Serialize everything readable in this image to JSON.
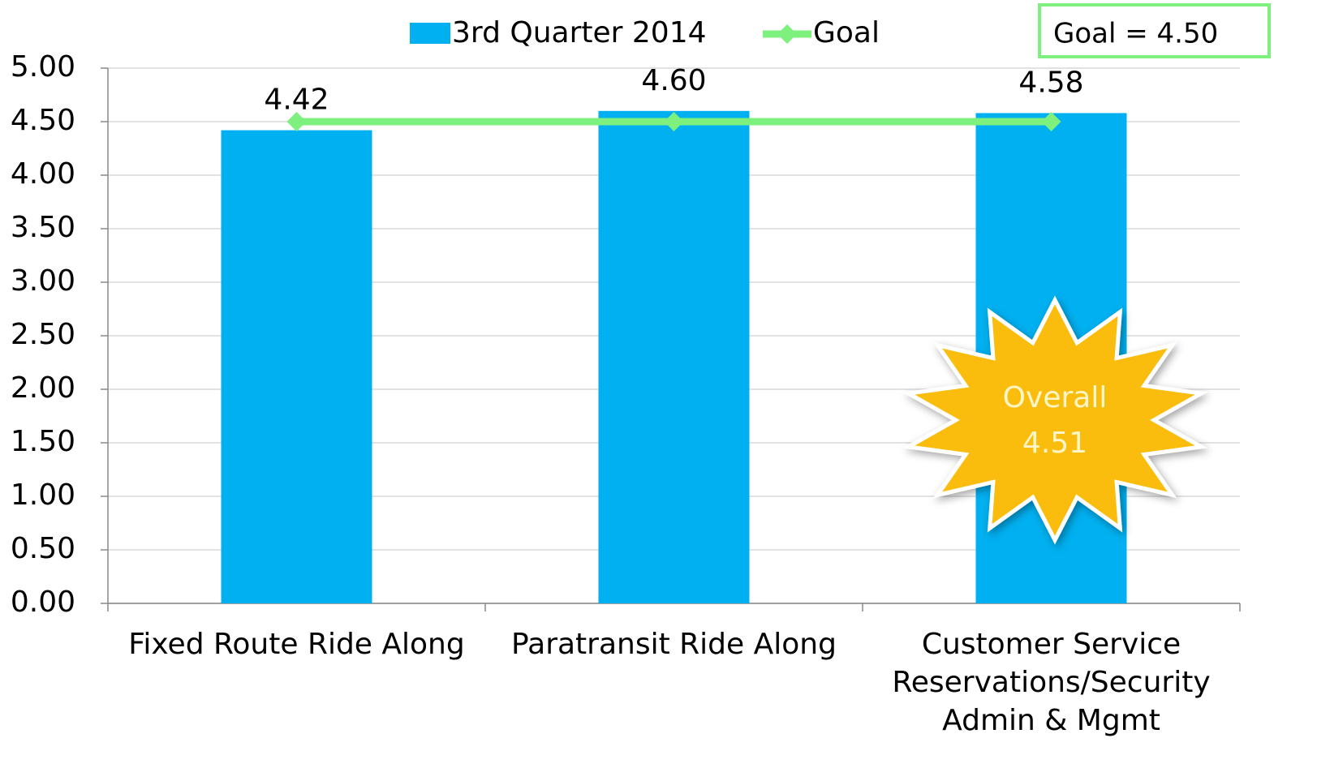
{
  "chart_data": {
    "type": "bar",
    "categories": [
      "Fixed Route Ride Along",
      "Paratransit Ride Along",
      "Customer Service\nReservations/Security\nAdmin & Mgmt"
    ],
    "series": [
      {
        "name": "3rd Quarter 2014",
        "type": "bar",
        "color": "#00b0f0",
        "values": [
          4.42,
          4.6,
          4.58
        ],
        "value_labels": [
          "4.42",
          "4.60",
          "4.58"
        ]
      },
      {
        "name": "Goal",
        "type": "line",
        "color": "#7ef07e",
        "values": [
          4.5,
          4.5,
          4.5
        ]
      }
    ],
    "ylim": [
      0,
      5
    ],
    "yticks": [
      {
        "value": 0,
        "label": "0.00"
      },
      {
        "value": 0.5,
        "label": "0.50"
      },
      {
        "value": 1,
        "label": "1.00"
      },
      {
        "value": 1.5,
        "label": "1.50"
      },
      {
        "value": 2,
        "label": "2.00"
      },
      {
        "value": 2.5,
        "label": "2.50"
      },
      {
        "value": 3,
        "label": "3.00"
      },
      {
        "value": 3.5,
        "label": "3.50"
      },
      {
        "value": 4,
        "label": "4.00"
      },
      {
        "value": 4.5,
        "label": "4.50"
      },
      {
        "value": 5,
        "label": "5.00"
      }
    ],
    "grid": true,
    "legend": "top",
    "annotations": [
      {
        "text": "Goal = 4.50"
      },
      {
        "text": "Overall\n4.51"
      }
    ]
  }
}
